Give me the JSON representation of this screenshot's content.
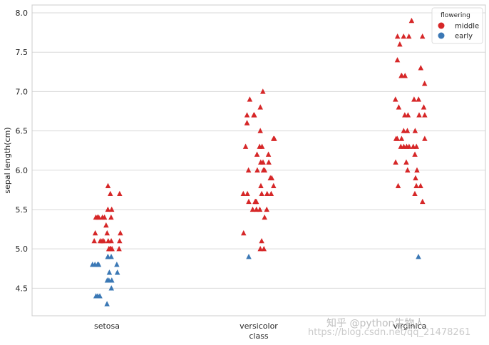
{
  "chart_data": {
    "type": "scatter",
    "subtype": "strip",
    "xlabel": "class",
    "ylabel": "sepal length(cm)",
    "categories": [
      "setosa",
      "versicolor",
      "virginica"
    ],
    "yticks": [
      "4.5",
      "5.0",
      "5.5",
      "6.0",
      "6.5",
      "7.0",
      "7.5",
      "8.0"
    ],
    "ylim": [
      4.15,
      8.1
    ],
    "grid": true,
    "marker": "triangle",
    "legend": {
      "title": "flowering",
      "placement": "top-right"
    },
    "series": [
      {
        "name": "middle",
        "color": "#d62728",
        "points": [
          [
            0,
            5.8
          ],
          [
            0,
            5.7
          ],
          [
            0,
            5.7
          ],
          [
            0,
            5.5
          ],
          [
            0,
            5.5
          ],
          [
            0,
            5.4
          ],
          [
            0,
            5.4
          ],
          [
            0,
            5.4
          ],
          [
            0,
            5.4
          ],
          [
            0,
            5.4
          ],
          [
            0,
            5.4
          ],
          [
            0,
            5.3
          ],
          [
            0,
            5.2
          ],
          [
            0,
            5.2
          ],
          [
            0,
            5.2
          ],
          [
            0,
            5.1
          ],
          [
            0,
            5.1
          ],
          [
            0,
            5.1
          ],
          [
            0,
            5.1
          ],
          [
            0,
            5.1
          ],
          [
            0,
            5.1
          ],
          [
            0,
            5.1
          ],
          [
            0,
            5.0
          ],
          [
            0,
            5.0
          ],
          [
            0,
            5.0
          ],
          [
            0,
            5.0
          ],
          [
            0,
            5.0
          ],
          [
            0,
            5.0
          ],
          [
            1,
            7.0
          ],
          [
            1,
            6.9
          ],
          [
            1,
            6.8
          ],
          [
            1,
            6.7
          ],
          [
            1,
            6.7
          ],
          [
            1,
            6.7
          ],
          [
            1,
            6.6
          ],
          [
            1,
            6.6
          ],
          [
            1,
            6.5
          ],
          [
            1,
            6.4
          ],
          [
            1,
            6.4
          ],
          [
            1,
            6.3
          ],
          [
            1,
            6.3
          ],
          [
            1,
            6.3
          ],
          [
            1,
            6.2
          ],
          [
            1,
            6.2
          ],
          [
            1,
            6.1
          ],
          [
            1,
            6.1
          ],
          [
            1,
            6.1
          ],
          [
            1,
            6.0
          ],
          [
            1,
            6.0
          ],
          [
            1,
            6.0
          ],
          [
            1,
            6.0
          ],
          [
            1,
            5.9
          ],
          [
            1,
            5.9
          ],
          [
            1,
            5.8
          ],
          [
            1,
            5.8
          ],
          [
            1,
            5.7
          ],
          [
            1,
            5.7
          ],
          [
            1,
            5.7
          ],
          [
            1,
            5.7
          ],
          [
            1,
            5.7
          ],
          [
            1,
            5.6
          ],
          [
            1,
            5.6
          ],
          [
            1,
            5.6
          ],
          [
            1,
            5.6
          ],
          [
            1,
            5.5
          ],
          [
            1,
            5.5
          ],
          [
            1,
            5.5
          ],
          [
            1,
            5.5
          ],
          [
            1,
            5.4
          ],
          [
            1,
            5.2
          ],
          [
            1,
            5.1
          ],
          [
            1,
            5.0
          ],
          [
            1,
            5.0
          ],
          [
            2,
            7.9
          ],
          [
            2,
            7.7
          ],
          [
            2,
            7.7
          ],
          [
            2,
            7.7
          ],
          [
            2,
            7.7
          ],
          [
            2,
            7.6
          ],
          [
            2,
            7.4
          ],
          [
            2,
            7.3
          ],
          [
            2,
            7.2
          ],
          [
            2,
            7.2
          ],
          [
            2,
            7.2
          ],
          [
            2,
            7.1
          ],
          [
            2,
            6.9
          ],
          [
            2,
            6.9
          ],
          [
            2,
            6.9
          ],
          [
            2,
            6.8
          ],
          [
            2,
            6.8
          ],
          [
            2,
            6.7
          ],
          [
            2,
            6.7
          ],
          [
            2,
            6.7
          ],
          [
            2,
            6.7
          ],
          [
            2,
            6.5
          ],
          [
            2,
            6.5
          ],
          [
            2,
            6.5
          ],
          [
            2,
            6.4
          ],
          [
            2,
            6.4
          ],
          [
            2,
            6.4
          ],
          [
            2,
            6.4
          ],
          [
            2,
            6.3
          ],
          [
            2,
            6.3
          ],
          [
            2,
            6.3
          ],
          [
            2,
            6.3
          ],
          [
            2,
            6.3
          ],
          [
            2,
            6.3
          ],
          [
            2,
            6.2
          ],
          [
            2,
            6.1
          ],
          [
            2,
            6.1
          ],
          [
            2,
            6.0
          ],
          [
            2,
            6.0
          ],
          [
            2,
            5.9
          ],
          [
            2,
            5.8
          ],
          [
            2,
            5.8
          ],
          [
            2,
            5.8
          ],
          [
            2,
            5.7
          ],
          [
            2,
            5.6
          ]
        ]
      },
      {
        "name": "early",
        "color": "#3b78b5",
        "points": [
          [
            0,
            4.9
          ],
          [
            0,
            4.9
          ],
          [
            0,
            4.9
          ],
          [
            0,
            4.8
          ],
          [
            0,
            4.8
          ],
          [
            0,
            4.8
          ],
          [
            0,
            4.8
          ],
          [
            0,
            4.8
          ],
          [
            0,
            4.7
          ],
          [
            0,
            4.7
          ],
          [
            0,
            4.6
          ],
          [
            0,
            4.6
          ],
          [
            0,
            4.6
          ],
          [
            0,
            4.5
          ],
          [
            0,
            4.4
          ],
          [
            0,
            4.4
          ],
          [
            0,
            4.4
          ],
          [
            0,
            4.3
          ],
          [
            1,
            4.9
          ],
          [
            2,
            4.9
          ]
        ]
      }
    ]
  },
  "watermark": {
    "text": "知乎 @python生物人",
    "url": "https://blog.csdn.net/qq_21478261"
  }
}
